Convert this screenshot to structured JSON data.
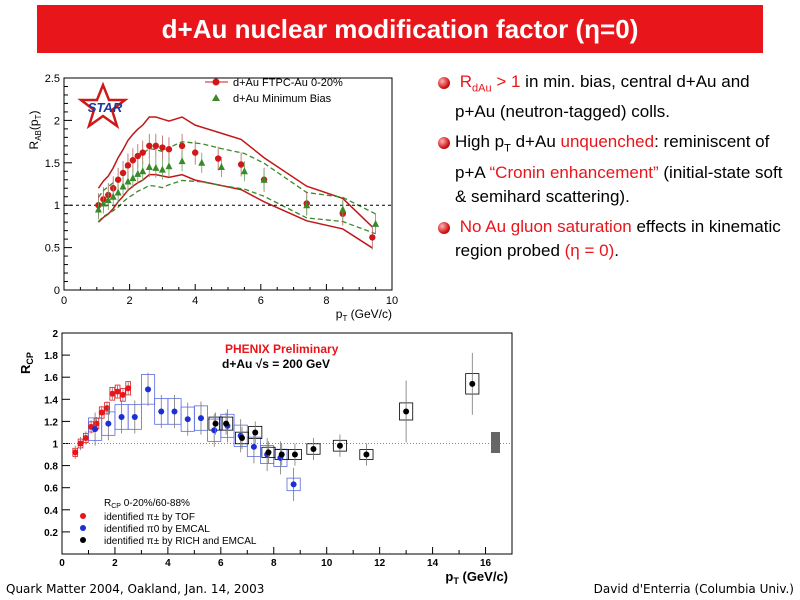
{
  "slide": {
    "title": "d+Au nuclear modification factor (η=0)",
    "footer_left": "Quark Matter 2004, Oakland, Jan. 14, 2003",
    "footer_right": "David d'Enterria (Columbia Univ.)"
  },
  "bullets": {
    "b1": {
      "r": "R",
      "sub": "dAu",
      "rest1": " > 1",
      "rest2": " in min. bias, central d+Au and p+Au (neutron-tagged) colls."
    },
    "b2": {
      "p1": "High p",
      "sub": "T",
      "p2": " d+Au ",
      "red1": "unquenched",
      "p3": ": reminiscent of p+A ",
      "red2": "“Cronin enhancement”",
      "p4": " (initial-state soft & semihard scattering)."
    },
    "b3": {
      "red1": "No Au gluon saturation",
      "p1": " effects in kinematic region probed ",
      "red2": "(η = 0)",
      "p2": "."
    }
  },
  "colors": {
    "accent": "#e8151b",
    "star_red": "#d01818",
    "triangle_green": "#3a8a2a",
    "blue": "#1a2fd6"
  },
  "chart_data": [
    {
      "type": "scatter",
      "ylabel_main": "R",
      "ylabel_sub": "AB",
      "ylabel_tail": "(p",
      "ylabel_tail_sub": "T",
      "ylabel_close": ")",
      "xlabel_main": "p",
      "xlabel_sub": "T",
      "xlabel_tail": " (GeV/c)",
      "xlim": [
        0,
        10
      ],
      "ylim": [
        0,
        2.5
      ],
      "xticks": [
        "0",
        "2",
        "4",
        "6",
        "8",
        "10"
      ],
      "yticks": [
        "0",
        "0.5",
        "1",
        "1.5",
        "2",
        "2.5"
      ],
      "logo": "STAR",
      "reference_line": 1,
      "series": [
        {
          "name": "d+Au FTPC-Au 0-20%",
          "marker": "circle",
          "color": "#d01818",
          "x": [
            1.05,
            1.2,
            1.35,
            1.5,
            1.65,
            1.8,
            1.95,
            2.1,
            2.25,
            2.4,
            2.6,
            2.8,
            3.0,
            3.2,
            3.6,
            4.0,
            4.7,
            5.4,
            6.1,
            7.4,
            8.5,
            9.4
          ],
          "y": [
            1.0,
            1.07,
            1.12,
            1.2,
            1.3,
            1.38,
            1.47,
            1.53,
            1.58,
            1.62,
            1.7,
            1.7,
            1.68,
            1.66,
            1.7,
            1.62,
            1.55,
            1.48,
            1.3,
            1.02,
            0.9,
            0.62
          ]
        },
        {
          "name": "d+Au Minimum Bias",
          "marker": "triangle",
          "color": "#3a8a2a",
          "x": [
            1.05,
            1.2,
            1.35,
            1.5,
            1.65,
            1.8,
            1.95,
            2.1,
            2.25,
            2.4,
            2.6,
            2.8,
            3.0,
            3.2,
            3.6,
            4.2,
            4.8,
            5.5,
            6.1,
            7.4,
            8.5,
            9.5
          ],
          "y": [
            0.95,
            1.02,
            1.06,
            1.1,
            1.15,
            1.22,
            1.28,
            1.32,
            1.37,
            1.4,
            1.45,
            1.44,
            1.42,
            1.46,
            1.52,
            1.5,
            1.45,
            1.4,
            1.3,
            1.0,
            0.95,
            0.78
          ]
        }
      ]
    },
    {
      "type": "scatter",
      "ylabel_main": "R",
      "ylabel_sub": "CP",
      "xlabel_main": "p",
      "xlabel_sub": "T",
      "xlabel_tail": " (GeV/c)",
      "xlim": [
        0,
        17
      ],
      "ylim": [
        0,
        2
      ],
      "xticks": [
        "0",
        "2",
        "4",
        "6",
        "8",
        "10",
        "12",
        "14",
        "16"
      ],
      "yticks": [
        "0.2",
        "0.4",
        "0.6",
        "0.8",
        "1",
        "1.2",
        "1.4",
        "1.6",
        "1.8",
        "2"
      ],
      "annotation1": "PHENIX Preliminary",
      "annotation2a": "d+Au ",
      "annotation2b": "s = 200 GeV",
      "legend_title_main": "R",
      "legend_title_sub": "CP",
      "legend_title_tail": " 0-20%/60-88%",
      "reference_line": 1,
      "series": [
        {
          "name": "identified π± by TOF",
          "marker": "circle",
          "color": "#e8151b",
          "x": [
            0.5,
            0.7,
            0.9,
            1.1,
            1.3,
            1.5,
            1.7,
            1.9,
            2.1,
            2.3,
            2.5
          ],
          "y": [
            0.92,
            1.0,
            1.05,
            1.15,
            1.18,
            1.28,
            1.32,
            1.45,
            1.47,
            1.44,
            1.5
          ]
        },
        {
          "name": "identified π0 by EMCAL",
          "marker": "circle",
          "color": "#1a2fd6",
          "x": [
            1.25,
            1.75,
            2.25,
            2.75,
            3.25,
            3.75,
            4.25,
            4.75,
            5.25,
            5.75,
            6.25,
            6.75,
            7.25,
            7.75,
            8.25,
            8.75
          ],
          "y": [
            1.13,
            1.18,
            1.24,
            1.24,
            1.49,
            1.29,
            1.29,
            1.22,
            1.23,
            1.12,
            1.16,
            1.07,
            0.97,
            0.9,
            0.87,
            0.63
          ]
        },
        {
          "name": "identified π± by RICH and EMCAL",
          "marker": "circle",
          "color": "#000000",
          "x": [
            5.8,
            6.2,
            6.8,
            7.3,
            7.8,
            8.3,
            8.8,
            9.5,
            10.5,
            11.5,
            13.0,
            15.5
          ],
          "y": [
            1.18,
            1.18,
            1.05,
            1.1,
            0.92,
            0.9,
            0.9,
            0.95,
            0.98,
            0.9,
            1.29,
            1.54
          ]
        }
      ]
    }
  ]
}
